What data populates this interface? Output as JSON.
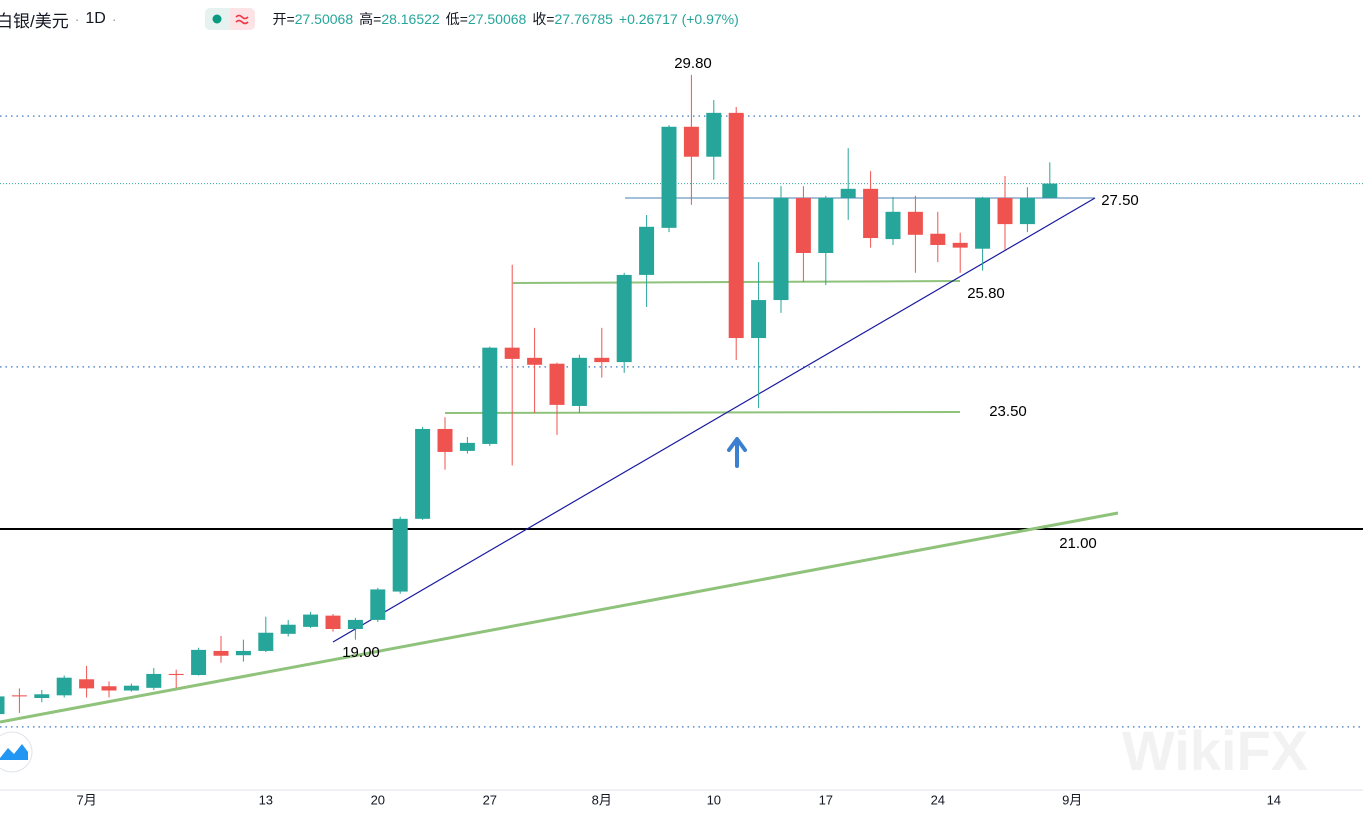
{
  "chart_data": {
    "type": "candlestick",
    "title": "白银/美元",
    "interval": "1D",
    "ohlc_labels": {
      "open": "开=",
      "high": "高=",
      "low": "低=",
      "close": "收="
    },
    "change_label": "+0.26717 (+0.97%)",
    "up_color": "#26a69a",
    "down_color": "#ef5350",
    "categories": [
      null,
      null,
      null,
      null,
      "7月",
      null,
      null,
      null,
      null,
      null,
      null,
      null,
      "13",
      null,
      null,
      null,
      null,
      "20",
      null,
      null,
      null,
      null,
      "27",
      null,
      null,
      null,
      null,
      "8月",
      null,
      null,
      null,
      null,
      "10",
      null,
      null,
      null,
      null,
      "17",
      null,
      null,
      null,
      null,
      "24",
      null,
      null,
      null,
      null,
      null,
      "9月",
      null,
      null,
      null,
      null,
      null,
      null,
      null,
      null,
      "14",
      null,
      null,
      null
    ],
    "series": {
      "open": [
        17.85,
        18.2,
        18.15,
        18.2,
        18.5,
        18.37,
        18.29,
        18.34,
        18.6,
        18.58,
        19.03,
        18.95,
        19.03,
        19.35,
        19.48,
        19.69,
        19.44,
        19.61,
        20.14,
        21.5,
        23.18,
        22.77,
        22.9,
        24.7,
        24.51,
        24.4,
        23.61,
        24.51,
        24.43,
        26.06,
        26.94,
        28.83,
        28.27,
        29.09,
        24.88,
        25.59,
        27.5,
        26.47,
        27.5,
        27.67,
        26.73,
        27.24,
        26.83,
        26.66,
        26.55,
        27.5,
        27.01,
        27.50068,
        null,
        null,
        null,
        null,
        null,
        null,
        null,
        null,
        null,
        null,
        null,
        null,
        null
      ],
      "high": [
        18.24,
        18.33,
        18.3,
        18.57,
        18.75,
        18.46,
        18.42,
        18.71,
        18.68,
        19.09,
        19.31,
        19.24,
        19.67,
        19.61,
        19.76,
        19.72,
        19.65,
        20.21,
        21.54,
        23.22,
        23.4,
        23.03,
        24.72,
        26.25,
        25.07,
        24.42,
        24.57,
        25.07,
        26.1,
        27.18,
        28.86,
        29.8,
        29.33,
        29.2,
        26.3,
        27.72,
        27.72,
        27.54,
        28.43,
        28.0,
        27.52,
        27.54,
        27.24,
        26.85,
        27.52,
        27.91,
        27.7,
        28.16522,
        null,
        null,
        null,
        null,
        null,
        null,
        null,
        null,
        null,
        null,
        null,
        null,
        null
      ],
      "low": [
        17.8,
        17.87,
        18.07,
        18.16,
        18.16,
        18.16,
        18.27,
        18.3,
        18.34,
        18.57,
        18.81,
        18.83,
        19.01,
        19.3,
        19.46,
        19.39,
        19.24,
        19.57,
        20.1,
        21.48,
        22.42,
        22.72,
        22.86,
        22.5,
        23.48,
        23.07,
        23.48,
        24.14,
        24.23,
        25.46,
        26.86,
        27.37,
        27.84,
        24.47,
        23.57,
        25.35,
        25.93,
        25.87,
        27.09,
        26.57,
        26.62,
        26.1,
        26.3,
        26.1,
        26.14,
        26.53,
        26.86,
        27.50068,
        null,
        null,
        null,
        null,
        null,
        null,
        null,
        null,
        null,
        null,
        null,
        null,
        null
      ],
      "close": [
        18.18,
        18.18,
        18.22,
        18.53,
        18.33,
        18.29,
        18.38,
        18.6,
        18.58,
        19.05,
        18.94,
        19.03,
        19.37,
        19.52,
        19.71,
        19.44,
        19.61,
        20.18,
        21.5,
        23.18,
        22.75,
        22.92,
        24.7,
        24.49,
        24.38,
        23.63,
        24.51,
        24.43,
        26.06,
        26.96,
        28.83,
        28.27,
        29.09,
        24.88,
        25.59,
        27.5,
        26.47,
        27.5,
        27.67,
        26.75,
        27.24,
        26.81,
        26.62,
        26.57,
        27.5,
        27.01,
        27.5,
        27.76785,
        null,
        null,
        null,
        null,
        null,
        null,
        null,
        null,
        null,
        null,
        null,
        null,
        null
      ]
    },
    "price_lines": [
      29.03,
      24.34,
      17.61
    ],
    "ylim": [
      16.43,
      31.2
    ],
    "annotations": [
      "29.80",
      "27.50",
      "25.80",
      "23.50",
      "21.00",
      "19.00"
    ],
    "watermark": "WikiFX"
  }
}
